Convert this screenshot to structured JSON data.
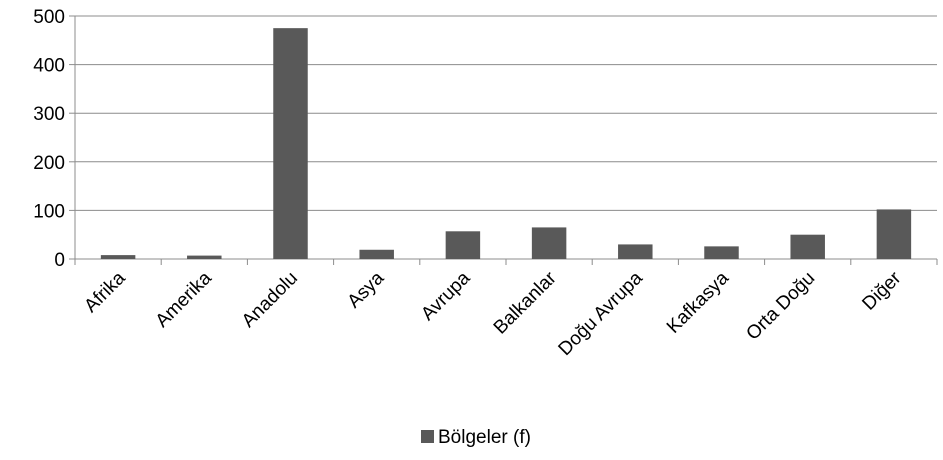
{
  "chart_data": {
    "type": "bar",
    "categories": [
      "Afrika",
      "Amerika",
      "Anadolu",
      "Asya",
      "Avrupa",
      "Balkanlar",
      "Doğu Avrupa",
      "Kafkasya",
      "Orta Doğu",
      "Diğer"
    ],
    "series": [
      {
        "name": "Bölgeler (f)",
        "values": [
          8,
          7,
          475,
          19,
          57,
          65,
          30,
          26,
          50,
          102
        ],
        "color": "#595959"
      }
    ],
    "yticks": [
      0,
      100,
      200,
      300,
      400,
      500
    ],
    "ylim": [
      0,
      500
    ],
    "grid": true,
    "legend_position": "bottom",
    "title": "",
    "xlabel": "",
    "ylabel": ""
  }
}
